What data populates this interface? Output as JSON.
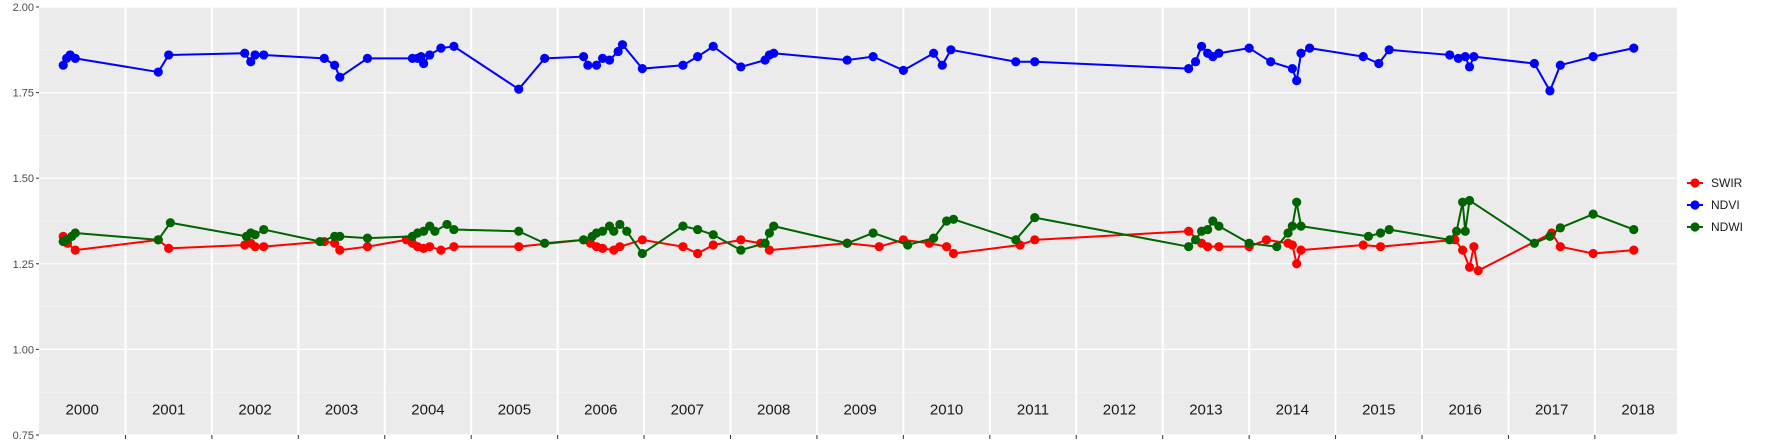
{
  "colors": {
    "panel": "#EBEBEB",
    "grid_major": "#FFFFFF",
    "grid_minor": "#F5F5F5",
    "SWIR": "#FF0000",
    "NDVI": "#0000FF",
    "NDWI": "#006400"
  },
  "chart_data": {
    "type": "line",
    "title": "",
    "xlabel": "",
    "ylabel": "",
    "xlim": [
      2000.0,
      2018.95
    ],
    "ylim": [
      0.75,
      2.0
    ],
    "y_ticks": [
      "0.75",
      "1.00",
      "1.25",
      "1.50",
      "1.75",
      "2.00"
    ],
    "year_labels": [
      "2000",
      "2001",
      "2002",
      "2003",
      "2004",
      "2005",
      "2006",
      "2007",
      "2008",
      "2009",
      "2010",
      "2011",
      "2012",
      "2013",
      "2014",
      "2015",
      "2016",
      "2017",
      "2018"
    ],
    "grid": true,
    "legend_position": "right",
    "series": [
      {
        "name": "SWIR",
        "color": "#FF0000",
        "points": [
          [
            2000.28,
            1.33
          ],
          [
            2000.33,
            1.31
          ],
          [
            2000.42,
            1.29
          ],
          [
            2001.38,
            1.32
          ],
          [
            2001.5,
            1.295
          ],
          [
            2002.38,
            1.305
          ],
          [
            2002.45,
            1.31
          ],
          [
            2002.5,
            1.3
          ],
          [
            2002.6,
            1.3
          ],
          [
            2003.3,
            1.315
          ],
          [
            2003.42,
            1.31
          ],
          [
            2003.48,
            1.29
          ],
          [
            2003.8,
            1.3
          ],
          [
            2004.25,
            1.32
          ],
          [
            2004.32,
            1.31
          ],
          [
            2004.38,
            1.3
          ],
          [
            2004.45,
            1.295
          ],
          [
            2004.52,
            1.3
          ],
          [
            2004.65,
            1.29
          ],
          [
            2004.8,
            1.3
          ],
          [
            2005.55,
            1.3
          ],
          [
            2006.3,
            1.32
          ],
          [
            2006.38,
            1.31
          ],
          [
            2006.45,
            1.3
          ],
          [
            2006.52,
            1.295
          ],
          [
            2006.65,
            1.29
          ],
          [
            2006.72,
            1.3
          ],
          [
            2006.98,
            1.32
          ],
          [
            2007.45,
            1.3
          ],
          [
            2007.62,
            1.28
          ],
          [
            2007.8,
            1.305
          ],
          [
            2008.12,
            1.32
          ],
          [
            2008.35,
            1.31
          ],
          [
            2008.45,
            1.29
          ],
          [
            2009.35,
            1.31
          ],
          [
            2009.72,
            1.3
          ],
          [
            2010.0,
            1.32
          ],
          [
            2010.3,
            1.31
          ],
          [
            2010.5,
            1.3
          ],
          [
            2010.58,
            1.28
          ],
          [
            2011.35,
            1.305
          ],
          [
            2011.52,
            1.32
          ],
          [
            2013.3,
            1.345
          ],
          [
            2013.45,
            1.31
          ],
          [
            2013.52,
            1.3
          ],
          [
            2013.65,
            1.3
          ],
          [
            2014.0,
            1.3
          ],
          [
            2014.2,
            1.32
          ],
          [
            2014.45,
            1.31
          ],
          [
            2014.5,
            1.305
          ],
          [
            2014.55,
            1.25
          ],
          [
            2014.6,
            1.29
          ],
          [
            2015.32,
            1.305
          ],
          [
            2015.52,
            1.3
          ],
          [
            2016.38,
            1.32
          ],
          [
            2016.47,
            1.29
          ],
          [
            2016.55,
            1.24
          ],
          [
            2016.6,
            1.3
          ],
          [
            2016.65,
            1.23
          ],
          [
            2017.5,
            1.34
          ],
          [
            2017.6,
            1.3
          ],
          [
            2017.98,
            1.28
          ],
          [
            2018.45,
            1.29
          ]
        ]
      },
      {
        "name": "NDVI",
        "color": "#0000FF",
        "points": [
          [
            2000.28,
            1.83
          ],
          [
            2000.32,
            1.85
          ],
          [
            2000.36,
            1.86
          ],
          [
            2000.42,
            1.85
          ],
          [
            2001.38,
            1.81
          ],
          [
            2001.5,
            1.86
          ],
          [
            2002.38,
            1.865
          ],
          [
            2002.45,
            1.84
          ],
          [
            2002.5,
            1.86
          ],
          [
            2002.6,
            1.86
          ],
          [
            2003.3,
            1.85
          ],
          [
            2003.42,
            1.83
          ],
          [
            2003.48,
            1.795
          ],
          [
            2003.8,
            1.85
          ],
          [
            2004.32,
            1.85
          ],
          [
            2004.38,
            1.85
          ],
          [
            2004.42,
            1.855
          ],
          [
            2004.45,
            1.835
          ],
          [
            2004.52,
            1.86
          ],
          [
            2004.65,
            1.88
          ],
          [
            2004.8,
            1.885
          ],
          [
            2005.55,
            1.76
          ],
          [
            2005.85,
            1.85
          ],
          [
            2006.3,
            1.855
          ],
          [
            2006.35,
            1.83
          ],
          [
            2006.45,
            1.83
          ],
          [
            2006.52,
            1.85
          ],
          [
            2006.6,
            1.845
          ],
          [
            2006.7,
            1.87
          ],
          [
            2006.75,
            1.89
          ],
          [
            2006.98,
            1.82
          ],
          [
            2007.45,
            1.83
          ],
          [
            2007.62,
            1.855
          ],
          [
            2007.8,
            1.885
          ],
          [
            2008.12,
            1.825
          ],
          [
            2008.4,
            1.845
          ],
          [
            2008.45,
            1.86
          ],
          [
            2008.5,
            1.865
          ],
          [
            2009.35,
            1.845
          ],
          [
            2009.65,
            1.855
          ],
          [
            2010.0,
            1.815
          ],
          [
            2010.35,
            1.865
          ],
          [
            2010.45,
            1.83
          ],
          [
            2010.55,
            1.875
          ],
          [
            2011.3,
            1.84
          ],
          [
            2011.52,
            1.84
          ],
          [
            2013.3,
            1.82
          ],
          [
            2013.38,
            1.84
          ],
          [
            2013.45,
            1.885
          ],
          [
            2013.52,
            1.865
          ],
          [
            2013.58,
            1.855
          ],
          [
            2013.65,
            1.865
          ],
          [
            2014.0,
            1.88
          ],
          [
            2014.25,
            1.84
          ],
          [
            2014.5,
            1.82
          ],
          [
            2014.55,
            1.785
          ],
          [
            2014.6,
            1.865
          ],
          [
            2014.7,
            1.88
          ],
          [
            2015.32,
            1.855
          ],
          [
            2015.5,
            1.835
          ],
          [
            2015.62,
            1.875
          ],
          [
            2016.32,
            1.86
          ],
          [
            2016.42,
            1.85
          ],
          [
            2016.5,
            1.855
          ],
          [
            2016.55,
            1.825
          ],
          [
            2016.6,
            1.855
          ],
          [
            2017.3,
            1.835
          ],
          [
            2017.48,
            1.755
          ],
          [
            2017.6,
            1.83
          ],
          [
            2017.98,
            1.855
          ],
          [
            2018.45,
            1.88
          ]
        ]
      },
      {
        "name": "NDWI",
        "color": "#006400",
        "points": [
          [
            2000.28,
            1.315
          ],
          [
            2000.32,
            1.32
          ],
          [
            2000.38,
            1.33
          ],
          [
            2000.42,
            1.34
          ],
          [
            2001.38,
            1.32
          ],
          [
            2001.52,
            1.37
          ],
          [
            2002.4,
            1.33
          ],
          [
            2002.45,
            1.34
          ],
          [
            2002.5,
            1.335
          ],
          [
            2002.6,
            1.35
          ],
          [
            2003.25,
            1.315
          ],
          [
            2003.42,
            1.33
          ],
          [
            2003.48,
            1.33
          ],
          [
            2003.8,
            1.325
          ],
          [
            2004.32,
            1.33
          ],
          [
            2004.38,
            1.34
          ],
          [
            2004.45,
            1.345
          ],
          [
            2004.52,
            1.36
          ],
          [
            2004.58,
            1.345
          ],
          [
            2004.72,
            1.365
          ],
          [
            2004.8,
            1.35
          ],
          [
            2005.55,
            1.345
          ],
          [
            2005.85,
            1.31
          ],
          [
            2006.3,
            1.32
          ],
          [
            2006.4,
            1.33
          ],
          [
            2006.45,
            1.34
          ],
          [
            2006.52,
            1.345
          ],
          [
            2006.6,
            1.36
          ],
          [
            2006.65,
            1.345
          ],
          [
            2006.72,
            1.365
          ],
          [
            2006.8,
            1.345
          ],
          [
            2006.98,
            1.28
          ],
          [
            2007.45,
            1.36
          ],
          [
            2007.62,
            1.35
          ],
          [
            2007.8,
            1.335
          ],
          [
            2008.12,
            1.29
          ],
          [
            2008.4,
            1.31
          ],
          [
            2008.45,
            1.34
          ],
          [
            2008.5,
            1.36
          ],
          [
            2009.35,
            1.31
          ],
          [
            2009.65,
            1.34
          ],
          [
            2010.05,
            1.305
          ],
          [
            2010.35,
            1.325
          ],
          [
            2010.5,
            1.375
          ],
          [
            2010.58,
            1.38
          ],
          [
            2011.3,
            1.32
          ],
          [
            2011.52,
            1.385
          ],
          [
            2013.3,
            1.3
          ],
          [
            2013.38,
            1.32
          ],
          [
            2013.45,
            1.345
          ],
          [
            2013.52,
            1.35
          ],
          [
            2013.58,
            1.375
          ],
          [
            2013.65,
            1.36
          ],
          [
            2014.0,
            1.31
          ],
          [
            2014.32,
            1.3
          ],
          [
            2014.45,
            1.34
          ],
          [
            2014.5,
            1.36
          ],
          [
            2014.55,
            1.43
          ],
          [
            2014.6,
            1.36
          ],
          [
            2015.38,
            1.33
          ],
          [
            2015.52,
            1.34
          ],
          [
            2015.62,
            1.35
          ],
          [
            2016.32,
            1.32
          ],
          [
            2016.4,
            1.345
          ],
          [
            2016.47,
            1.43
          ],
          [
            2016.5,
            1.345
          ],
          [
            2016.55,
            1.435
          ],
          [
            2017.3,
            1.31
          ],
          [
            2017.48,
            1.33
          ],
          [
            2017.6,
            1.355
          ],
          [
            2017.98,
            1.395
          ],
          [
            2018.45,
            1.35
          ]
        ]
      }
    ]
  }
}
